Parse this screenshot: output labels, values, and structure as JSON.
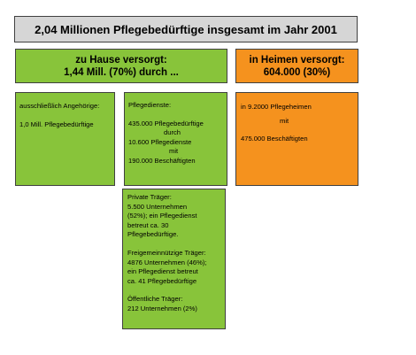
{
  "title": "2,04 Millionen Pflegebedürftige insgesamt im Jahr 2001",
  "home_care": {
    "line1": "zu Hause versorgt:",
    "line2": "1,44 Mill. (70%) durch ..."
  },
  "nursing_homes": {
    "line1": "in Heimen versorgt:",
    "line2": "604.000 (30%)"
  },
  "relatives": {
    "heading": "ausschließlich Angehörige:",
    "count": "1,0 Mill. Pflegebedürftige"
  },
  "care_services": {
    "heading": "Pflegedienste:",
    "line1": "435.000 Pflegebedürftige",
    "line2": "durch",
    "line3": "10.600 Pflegedienste",
    "line4": "mit",
    "line5": "190.000 Beschäftigten"
  },
  "homes_detail": {
    "line1": "in 9.2000 Pflegeheimen",
    "line2": "mit",
    "line3": "475.000 Beschäftigten"
  },
  "providers": {
    "private_heading": "Private Träger:",
    "private_1": "5.500 Unternehmen",
    "private_2": "(52%); ein Pflegedienst",
    "private_3": "betreut ca. 30",
    "private_4": "Pflegebedürftige.",
    "nonprofit_heading": "Freigemeinnützige Träger:",
    "nonprofit_1": "4876 Unternehmen (46%);",
    "nonprofit_2": "ein Pflegedienst betreut",
    "nonprofit_3": "ca. 41 Pflegebedürftige",
    "public_heading": "Öffentliche Träger:",
    "public_1": "212 Unternehmen (2%)"
  },
  "colors": {
    "green": "#88c43a",
    "orange": "#f5921e",
    "grey": "#d6d6d6"
  }
}
